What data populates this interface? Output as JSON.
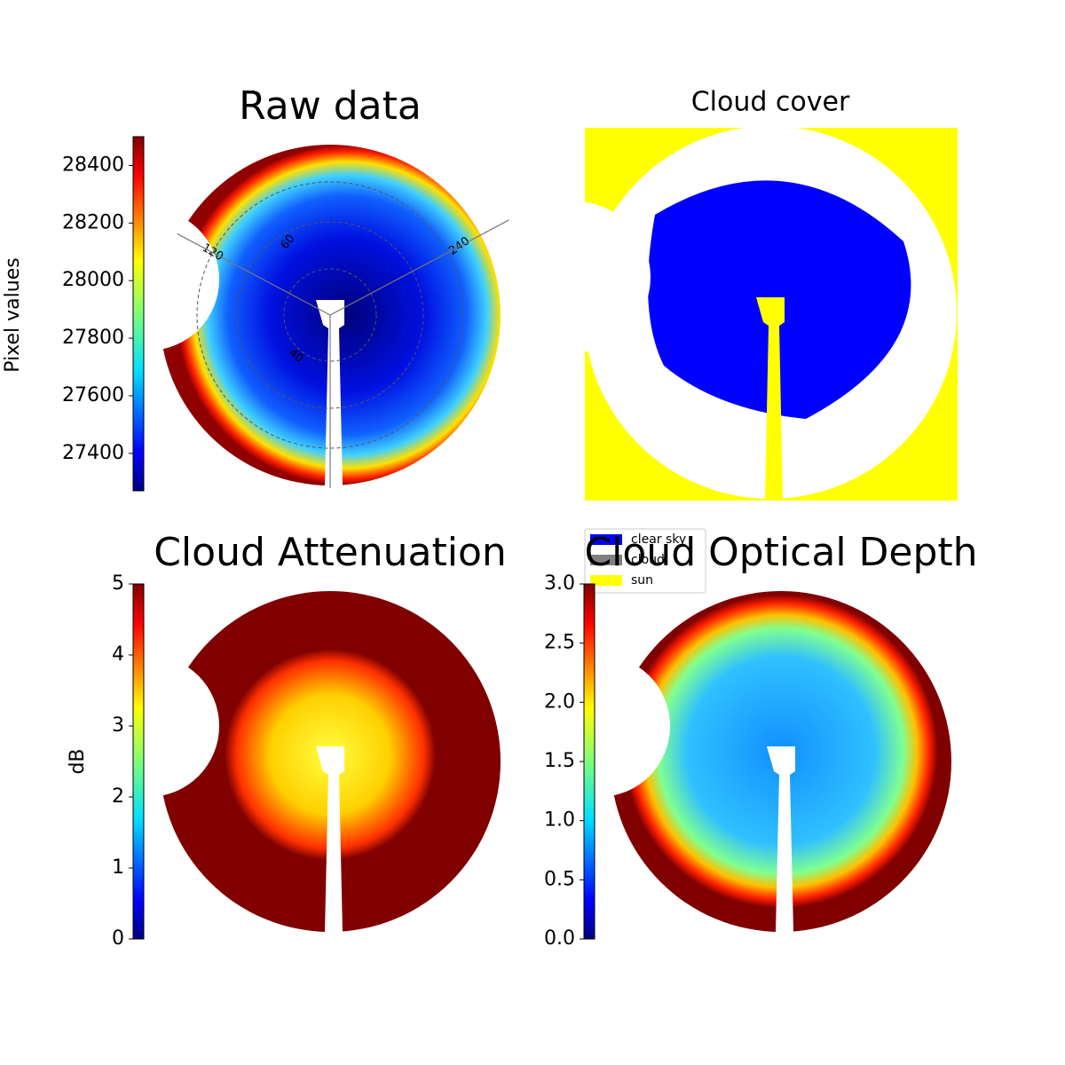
{
  "chart_data": [
    {
      "type": "image",
      "title": "Raw data",
      "colormap": "jet",
      "colorbar_label": "Pixel values",
      "clim": [
        27270,
        28500
      ],
      "cticks": [
        27400,
        27600,
        27800,
        28000,
        28200,
        28400
      ],
      "annotations": [
        "120",
        "60",
        "240",
        "40"
      ]
    },
    {
      "type": "mask",
      "title": "Cloud cover",
      "series": [
        {
          "name": "clear sky",
          "color": "#0000ff"
        },
        {
          "name": "cloud",
          "color": "#808080"
        },
        {
          "name": "sun",
          "color": "#ffff00"
        }
      ]
    },
    {
      "type": "image",
      "title": "Cloud Attenuation",
      "colormap": "jet",
      "colorbar_label": "dB",
      "clim": [
        0,
        5
      ],
      "cticks": [
        0,
        1,
        2,
        3,
        4,
        5
      ]
    },
    {
      "type": "image",
      "title": "Cloud Optical Depth",
      "colormap": "jet",
      "clim": [
        0,
        3
      ],
      "cticks": [
        {
          "value": 0,
          "label": "0.0"
        },
        {
          "value": 0.5,
          "label": "0.5"
        },
        {
          "value": 1,
          "label": "1.0"
        },
        {
          "value": 1.5,
          "label": "1.5"
        },
        {
          "value": 2,
          "label": "2.0"
        },
        {
          "value": 2.5,
          "label": "2.5"
        },
        {
          "value": 3,
          "label": "3.0"
        }
      ]
    }
  ]
}
